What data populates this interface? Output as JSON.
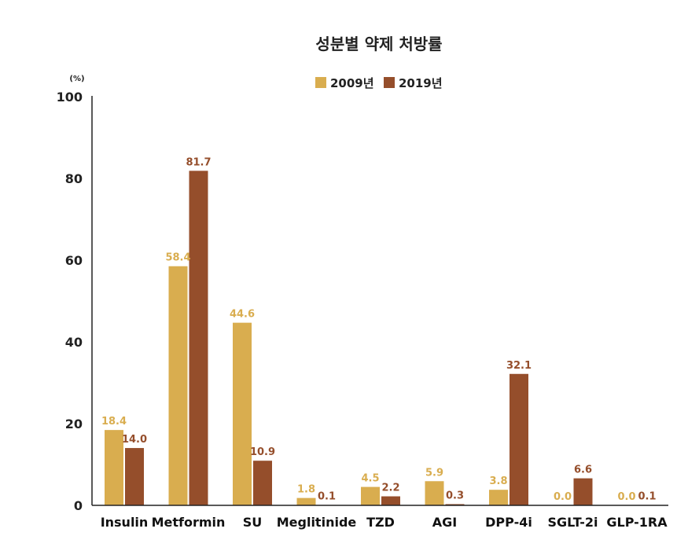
{
  "chart_data": {
    "type": "bar",
    "title": "성분별 약제 처방률",
    "unit_label": "(%)",
    "categories": [
      "Insulin",
      "Metformin",
      "SU",
      "Meglitinide",
      "TZD",
      "AGI",
      "DPP-4i",
      "SGLT-2i",
      "GLP-1RA"
    ],
    "series": [
      {
        "name": "2009년",
        "color": "#D9AD4F",
        "values": [
          18.4,
          58.4,
          44.6,
          1.8,
          4.5,
          5.9,
          3.8,
          0.0,
          0.0
        ],
        "labels": [
          "18.4",
          "58.4",
          "44.6",
          "1.8",
          "4.5",
          "5.9",
          "3.8",
          "0.0",
          "0.0"
        ]
      },
      {
        "name": "2019년",
        "color": "#954E2B",
        "values": [
          14.0,
          81.7,
          10.9,
          0.1,
          2.2,
          0.3,
          32.1,
          6.6,
          0.1
        ],
        "labels": [
          "14.0",
          "81.7",
          "10.9",
          "0.1",
          "2.2",
          "0.3",
          "32.1",
          "6.6",
          "0.1"
        ]
      }
    ],
    "ylim": [
      0,
      100
    ],
    "yticks": [
      "0",
      "20",
      "40",
      "60",
      "80",
      "100"
    ],
    "xlabel": "",
    "ylabel": "",
    "grid": false,
    "legend_position": "top-center"
  }
}
